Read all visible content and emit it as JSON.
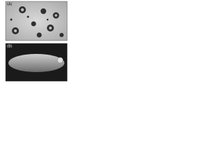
{
  "panels": [
    {
      "label": "(A)"
    },
    {
      "label": "(B)"
    }
  ]
}
